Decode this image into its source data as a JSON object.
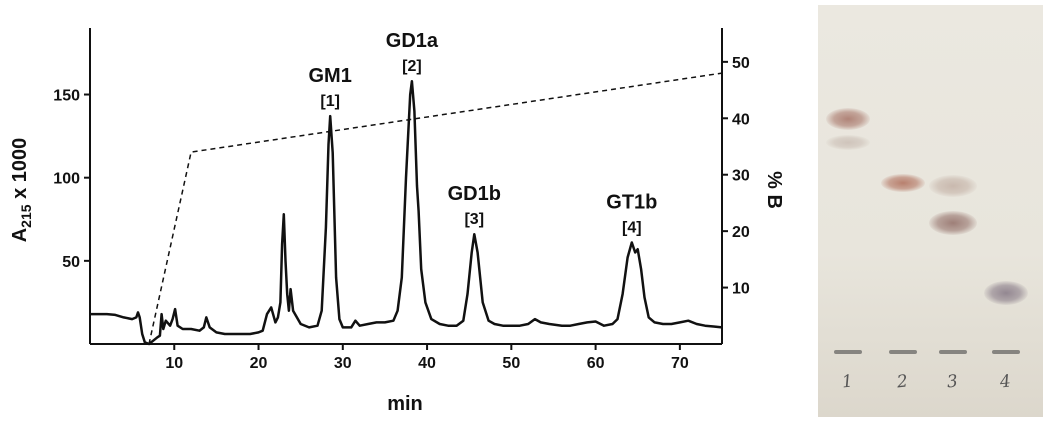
{
  "chart_data": {
    "type": "line",
    "xlabel": "min",
    "ylabel_main": "A",
    "ylabel_sub": "215",
    "ylabel_tail": " x 1000",
    "y2label": "% B",
    "xlim": [
      0,
      75
    ],
    "ylim": [
      0,
      190
    ],
    "y2lim": [
      0,
      56
    ],
    "xticks": [
      10,
      20,
      30,
      40,
      50,
      60,
      70
    ],
    "yticks": [
      50,
      100,
      150
    ],
    "y2ticks": [
      10,
      20,
      30,
      40,
      50
    ],
    "grid": false,
    "series": [
      {
        "style": "solid",
        "axis": "left",
        "points": [
          [
            0,
            18
          ],
          [
            1,
            18
          ],
          [
            2,
            18
          ],
          [
            3,
            17.5
          ],
          [
            4,
            16
          ],
          [
            5,
            15
          ],
          [
            5.5,
            16
          ],
          [
            5.7,
            19
          ],
          [
            5.9,
            16
          ],
          [
            6.2,
            6
          ],
          [
            6.5,
            1
          ],
          [
            7,
            0
          ],
          [
            7.5,
            2
          ],
          [
            8,
            4
          ],
          [
            8.3,
            5
          ],
          [
            8.5,
            18
          ],
          [
            8.7,
            9
          ],
          [
            9,
            14
          ],
          [
            9.5,
            11
          ],
          [
            9.8,
            15
          ],
          [
            10.1,
            21
          ],
          [
            10.4,
            11
          ],
          [
            11,
            9
          ],
          [
            12,
            9
          ],
          [
            13,
            8
          ],
          [
            13.5,
            10
          ],
          [
            13.8,
            16
          ],
          [
            14.2,
            10
          ],
          [
            15,
            7
          ],
          [
            16,
            6
          ],
          [
            17,
            6
          ],
          [
            18,
            6
          ],
          [
            19,
            6
          ],
          [
            20,
            7
          ],
          [
            20.5,
            8
          ],
          [
            21,
            18
          ],
          [
            21.5,
            22
          ],
          [
            22,
            13
          ],
          [
            22.3,
            16
          ],
          [
            22.6,
            25
          ],
          [
            22.8,
            60
          ],
          [
            23,
            78
          ],
          [
            23.2,
            50
          ],
          [
            23.4,
            30
          ],
          [
            23.6,
            20
          ],
          [
            23.8,
            33
          ],
          [
            24.1,
            20
          ],
          [
            25,
            12
          ],
          [
            26,
            10
          ],
          [
            27,
            11
          ],
          [
            27.5,
            20
          ],
          [
            28,
            70
          ],
          [
            28.3,
            120
          ],
          [
            28.5,
            137
          ],
          [
            28.8,
            115
          ],
          [
            29.2,
            40
          ],
          [
            29.6,
            15
          ],
          [
            30,
            10
          ],
          [
            31,
            10
          ],
          [
            31.5,
            14
          ],
          [
            32,
            11
          ],
          [
            33,
            12
          ],
          [
            34,
            13
          ],
          [
            35,
            13
          ],
          [
            36,
            14
          ],
          [
            36.5,
            20
          ],
          [
            37,
            40
          ],
          [
            37.5,
            100
          ],
          [
            38,
            150
          ],
          [
            38.2,
            158
          ],
          [
            38.5,
            140
          ],
          [
            38.8,
            95
          ],
          [
            39,
            80
          ],
          [
            39.3,
            45
          ],
          [
            39.8,
            25
          ],
          [
            40.5,
            15
          ],
          [
            41.5,
            12
          ],
          [
            42.5,
            11
          ],
          [
            43.5,
            11
          ],
          [
            44.3,
            14
          ],
          [
            44.8,
            30
          ],
          [
            45.3,
            55
          ],
          [
            45.6,
            66
          ],
          [
            46,
            55
          ],
          [
            46.6,
            25
          ],
          [
            47.3,
            14
          ],
          [
            48,
            12
          ],
          [
            49,
            11
          ],
          [
            50,
            11
          ],
          [
            51,
            11
          ],
          [
            52,
            12
          ],
          [
            52.8,
            15
          ],
          [
            53.5,
            13
          ],
          [
            54.5,
            12
          ],
          [
            56,
            11
          ],
          [
            57,
            11
          ],
          [
            58,
            12
          ],
          [
            59,
            13
          ],
          [
            60,
            13.5
          ],
          [
            61,
            11
          ],
          [
            62,
            12
          ],
          [
            62.6,
            15
          ],
          [
            63.2,
            30
          ],
          [
            63.8,
            52
          ],
          [
            64.3,
            61
          ],
          [
            64.7,
            55
          ],
          [
            65,
            57
          ],
          [
            65.4,
            45
          ],
          [
            65.8,
            28
          ],
          [
            66.3,
            16
          ],
          [
            67,
            13
          ],
          [
            68,
            12
          ],
          [
            69,
            12
          ],
          [
            70,
            13
          ],
          [
            71,
            14
          ],
          [
            72,
            12
          ],
          [
            73,
            11
          ],
          [
            74,
            10.5
          ],
          [
            75,
            10
          ]
        ]
      },
      {
        "style": "dashed",
        "axis": "right",
        "points": [
          [
            7,
            0
          ],
          [
            12,
            34
          ],
          [
            75,
            48
          ]
        ]
      }
    ],
    "annotations": [
      {
        "name": "GM1",
        "num": "[1]",
        "x": 28.5,
        "peak": 137
      },
      {
        "name": "GD1a",
        "num": "[2]",
        "x": 38.2,
        "peak": 158
      },
      {
        "name": "GD1b",
        "num": "[3]",
        "x": 45.6,
        "peak": 66
      },
      {
        "name": "GT1b",
        "num": "[4]",
        "x": 64.3,
        "peak": 61
      }
    ]
  },
  "tlc_plate": {
    "lanes": [
      {
        "label": "1",
        "spots": [
          {
            "rf": 0.69,
            "color": "#b08478"
          },
          {
            "rf": 0.62,
            "color": "#cfc4bb"
          }
        ]
      },
      {
        "label": "2",
        "spots": [
          {
            "rf": 0.5,
            "color": "#b8806e"
          }
        ]
      },
      {
        "label": "3",
        "spots": [
          {
            "rf": 0.49,
            "color": "#c9b9ae"
          },
          {
            "rf": 0.38,
            "color": "#9e7f78"
          }
        ]
      },
      {
        "label": "4",
        "spots": [
          {
            "rf": 0.17,
            "color": "#938791"
          }
        ]
      }
    ]
  }
}
